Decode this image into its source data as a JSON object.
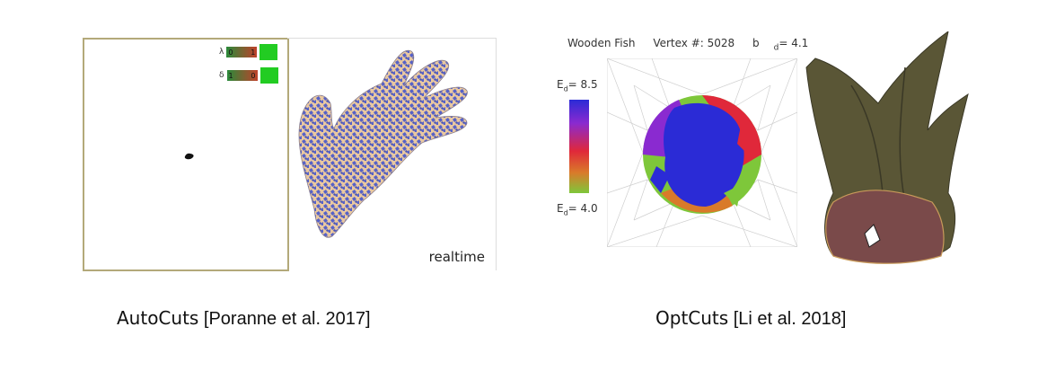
{
  "left_figure": {
    "params": [
      {
        "symbol": "λ",
        "left_value": "0",
        "right_value": "1"
      },
      {
        "symbol": "δ",
        "left_value": "1",
        "right_value": "0"
      }
    ],
    "viewport_label": "realtime",
    "colors": {
      "frame": "#b3a97a",
      "swatch": "#22cc22",
      "mesh_blue": "#5561c8",
      "mesh_tan": "#e9c8a0"
    }
  },
  "right_figure": {
    "model_name": "Wooden Fish",
    "vertex_label": "Vertex #: 5028",
    "bd_symbol": "b",
    "bd_subscript": "d",
    "bd_value": "= 4.1",
    "colorbar": {
      "symbol": "E",
      "subscript": "d",
      "max_text": "= 8.5",
      "min_text": "= 4.0",
      "colors": [
        "#2b2bd6",
        "#8a2ad0",
        "#e0283a",
        "#d97a2a",
        "#7ec73a"
      ]
    }
  },
  "captions": {
    "left": {
      "method": "AutoCuts",
      "citation": "[Poranne et al. 2017]"
    },
    "right": {
      "method": "OptCuts",
      "citation": "[Li et al. 2018]"
    }
  }
}
